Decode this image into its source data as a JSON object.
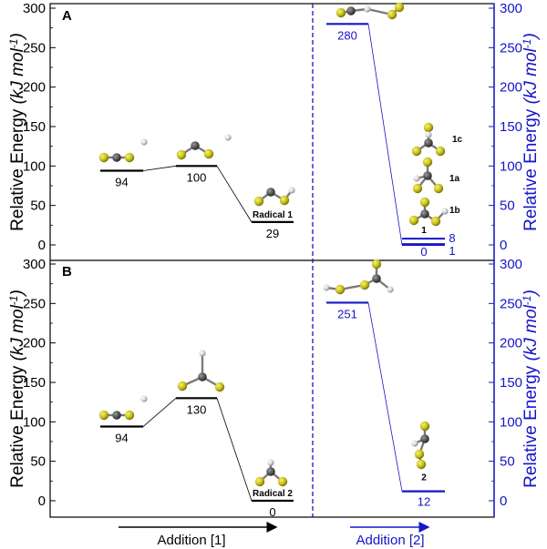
{
  "axes": {
    "ylabel_main": "Relative Energy ",
    "ylabel_units": "(kJ mol",
    "ylabel_exp": "-1",
    "ylabel_close": ")",
    "yticks": [
      0,
      50,
      100,
      150,
      200,
      250,
      300
    ],
    "xlabel_left": "Addition [1]",
    "xlabel_right": "Addition [2]"
  },
  "colors": {
    "left": "#000000",
    "right": "#1515c8",
    "sulfur": "#c9c21a",
    "carbon": "#555555",
    "hydrogen": "#d6d6d6"
  },
  "chart_data": [
    {
      "type": "energy-diagram",
      "panel": "A",
      "ylim": [
        0,
        300
      ],
      "addition_1": [
        {
          "label": "94",
          "value": 94
        },
        {
          "label": "100",
          "value": 100
        },
        {
          "label": "29",
          "value": 29,
          "name": "Radical 1"
        }
      ],
      "addition_2": [
        {
          "label": "280",
          "value": 280
        },
        {
          "label": "8",
          "value": 8
        },
        {
          "label": "1",
          "value": 1
        },
        {
          "label": "0",
          "value": 0,
          "name": "1"
        }
      ],
      "isomer_labels": [
        "1c",
        "1a",
        "1b",
        "1"
      ]
    },
    {
      "type": "energy-diagram",
      "panel": "B",
      "ylim": [
        0,
        300
      ],
      "addition_1": [
        {
          "label": "94",
          "value": 94
        },
        {
          "label": "130",
          "value": 130
        },
        {
          "label": "0",
          "value": 0,
          "name": "Radical 2"
        }
      ],
      "addition_2": [
        {
          "label": "251",
          "value": 251
        },
        {
          "label": "12",
          "value": 12,
          "name": "2"
        }
      ]
    }
  ]
}
